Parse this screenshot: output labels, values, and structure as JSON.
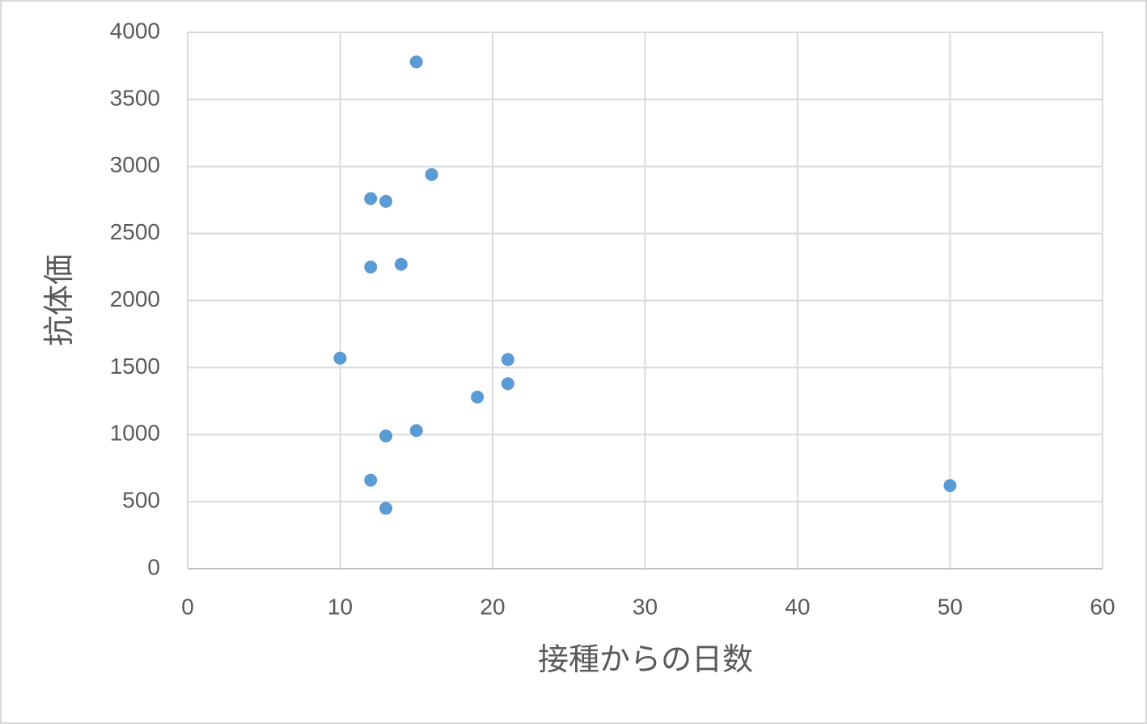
{
  "chart_data": {
    "type": "scatter",
    "x_label": "接種からの日数",
    "y_label": "抗体価",
    "x": [
      15,
      16,
      12,
      13,
      12,
      14,
      10,
      21,
      21,
      19,
      15,
      13,
      12,
      13,
      50
    ],
    "series": [
      {
        "color": "#5b9bd5",
        "values": [
          3780,
          2940,
          2760,
          2740,
          2250,
          2270,
          1570,
          1560,
          1380,
          1280,
          1030,
          990,
          660,
          450,
          620
        ]
      }
    ],
    "xlim": [
      0,
      60
    ],
    "xticks": [
      0,
      10,
      20,
      30,
      40,
      50,
      60
    ],
    "ylim": [
      0,
      4000
    ],
    "yticks": [
      0,
      500,
      1000,
      1500,
      2000,
      2500,
      3000,
      3500,
      4000
    ],
    "grid": true
  }
}
